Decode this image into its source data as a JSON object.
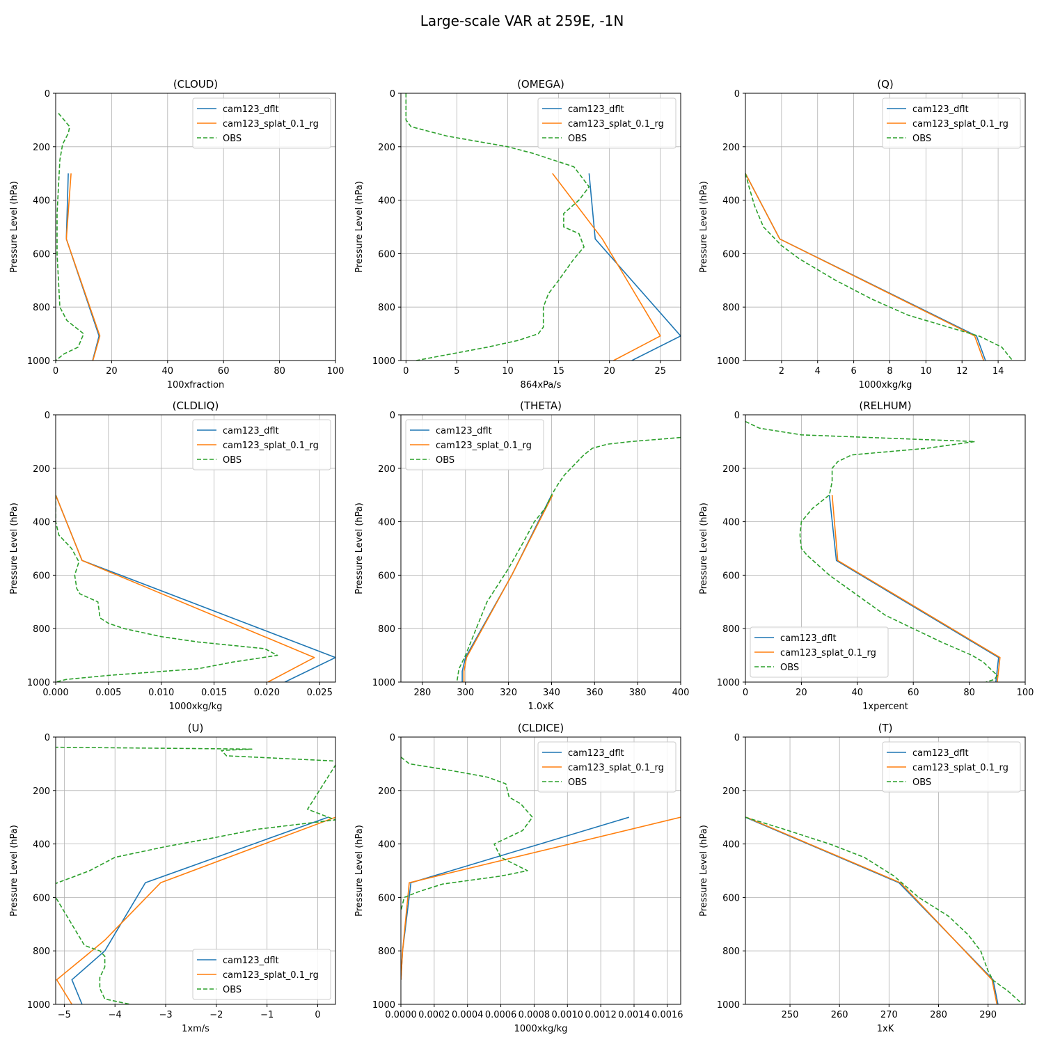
{
  "figure": {
    "title": "Large-scale VAR at 259E, -1N"
  },
  "legend_labels": [
    "cam123_dflt",
    "cam123_splat_0.1_rg",
    "OBS"
  ],
  "colors": {
    "cam123_dflt": "#1f77b4",
    "cam123_splat_0.1_rg": "#ff7f0e",
    "OBS": "#2ca02c",
    "grid": "#b0b0b0"
  },
  "chart_data": [
    {
      "type": "line",
      "title": "(CLOUD)",
      "xlabel": "100xfraction",
      "ylabel": "Pressure Level (hPa)",
      "xlim": [
        0,
        100
      ],
      "ylim": [
        1000,
        0
      ],
      "y_inverted": true,
      "grid": true,
      "legend": "upper right",
      "xticks": [
        0,
        20,
        40,
        60,
        80,
        100
      ],
      "xtick_labels": [
        "0",
        "20",
        "40",
        "60",
        "80",
        "100"
      ],
      "yticks": [
        0,
        200,
        400,
        600,
        800,
        1000
      ],
      "series": [
        {
          "name": "cam123_dflt",
          "style": "solid",
          "x": [
            4.5,
            3.8,
            15.5,
            13.2
          ],
          "y": [
            300,
            545,
            908,
            1000
          ]
        },
        {
          "name": "cam123_splat_0.1_rg",
          "style": "solid",
          "x": [
            5.5,
            3.8,
            15.8,
            13.3
          ],
          "y": [
            300,
            545,
            908,
            1000
          ]
        },
        {
          "name": "OBS",
          "style": "dashed",
          "x": [
            1,
            3,
            5,
            4.5,
            2.5,
            1.5,
            1,
            0.5,
            0.5,
            1,
            1.5,
            4,
            7,
            10,
            8,
            3,
            0
          ],
          "y": [
            75,
            100,
            125,
            150,
            190,
            250,
            350,
            450,
            600,
            700,
            800,
            850,
            875,
            900,
            950,
            975,
            1000
          ]
        }
      ]
    },
    {
      "type": "line",
      "title": "(OMEGA)",
      "xlabel": "864xPa/s",
      "ylabel": "Pressure Level (hPa)",
      "xlim": [
        -0.5,
        27
      ],
      "ylim": [
        1000,
        0
      ],
      "y_inverted": true,
      "grid": true,
      "legend": "upper right",
      "xticks": [
        0,
        5,
        10,
        15,
        20,
        25
      ],
      "xtick_labels": [
        "0",
        "5",
        "10",
        "15",
        "20",
        "25"
      ],
      "yticks": [
        0,
        200,
        400,
        600,
        800,
        1000
      ],
      "series": [
        {
          "name": "cam123_dflt",
          "style": "solid",
          "x": [
            18,
            18.6,
            27,
            22.2
          ],
          "y": [
            300,
            545,
            908,
            1000
          ]
        },
        {
          "name": "cam123_splat_0.1_rg",
          "style": "solid",
          "x": [
            14.4,
            19.3,
            25,
            20.4
          ],
          "y": [
            300,
            545,
            908,
            1000
          ]
        },
        {
          "name": "OBS",
          "style": "dashed",
          "x": [
            0,
            0,
            0,
            0.5,
            4,
            10,
            12.5,
            16.5,
            18,
            17,
            15.5,
            15.5,
            17,
            17.5,
            16.5,
            15,
            14,
            13.5,
            13.5,
            13,
            11,
            8,
            1
          ],
          "y": [
            0,
            50,
            100,
            125,
            160,
            200,
            225,
            275,
            350,
            400,
            450,
            500,
            525,
            575,
            620,
            700,
            750,
            800,
            875,
            900,
            925,
            950,
            1000
          ]
        }
      ]
    },
    {
      "type": "line",
      "title": "(Q)",
      "xlabel": "1000xkg/kg",
      "ylabel": "Pressure Level (hPa)",
      "xlim": [
        0,
        15.5
      ],
      "ylim": [
        1000,
        0
      ],
      "y_inverted": true,
      "grid": true,
      "legend": "upper right",
      "xticks": [
        2,
        4,
        6,
        8,
        10,
        12,
        14
      ],
      "xtick_labels": [
        "2",
        "4",
        "6",
        "8",
        "10",
        "12",
        "14"
      ],
      "yticks": [
        0,
        200,
        400,
        600,
        800,
        1000
      ],
      "series": [
        {
          "name": "cam123_dflt",
          "style": "solid",
          "x": [
            0,
            1.9,
            12.8,
            13.3
          ],
          "y": [
            300,
            545,
            908,
            1000
          ]
        },
        {
          "name": "cam123_splat_0.1_rg",
          "style": "solid",
          "x": [
            0,
            1.9,
            12.7,
            13.2
          ],
          "y": [
            300,
            545,
            908,
            1000
          ]
        },
        {
          "name": "OBS",
          "style": "dashed",
          "x": [
            0,
            0.2,
            0.5,
            1,
            2,
            3,
            5,
            7,
            9,
            11,
            13,
            14.2,
            14.8
          ],
          "y": [
            300,
            350,
            420,
            500,
            570,
            620,
            700,
            770,
            830,
            870,
            910,
            950,
            1000
          ]
        }
      ]
    },
    {
      "type": "line",
      "title": "(CLDLIQ)",
      "xlabel": "1000xkg/kg",
      "ylabel": "Pressure Level (hPa)",
      "xlim": [
        0,
        0.0265
      ],
      "ylim": [
        1000,
        0
      ],
      "y_inverted": true,
      "grid": true,
      "legend": "upper right",
      "xticks": [
        0,
        0.005,
        0.01,
        0.015,
        0.02,
        0.025
      ],
      "xtick_labels": [
        "0.000",
        "0.005",
        "0.010",
        "0.015",
        "0.020",
        "0.025"
      ],
      "yticks": [
        0,
        200,
        400,
        600,
        800,
        1000
      ],
      "series": [
        {
          "name": "cam123_dflt",
          "style": "solid",
          "x": [
            0,
            0.0025,
            0.0265,
            0.0217
          ],
          "y": [
            300,
            545,
            908,
            1000
          ]
        },
        {
          "name": "cam123_splat_0.1_rg",
          "style": "solid",
          "x": [
            0,
            0.0025,
            0.0245,
            0.0201
          ],
          "y": [
            300,
            545,
            908,
            1000
          ]
        },
        {
          "name": "OBS",
          "style": "dashed",
          "x": [
            0,
            0,
            0.0003,
            0.0015,
            0.0022,
            0.0018,
            0.002,
            0.0023,
            0.004,
            0.0042,
            0.005,
            0.0065,
            0.01,
            0.0135,
            0.0198,
            0.021,
            0.0168,
            0.0135,
            0.005,
            0.001,
            0
          ],
          "y": [
            300,
            400,
            450,
            500,
            550,
            600,
            650,
            670,
            700,
            760,
            780,
            800,
            830,
            850,
            875,
            900,
            925,
            950,
            975,
            990,
            1000
          ]
        }
      ]
    },
    {
      "type": "line",
      "title": "(THETA)",
      "xlabel": "1.0xK",
      "ylabel": "Pressure Level (hPa)",
      "xlim": [
        270,
        400
      ],
      "ylim": [
        1000,
        0
      ],
      "y_inverted": true,
      "grid": true,
      "legend": "upper left",
      "xticks": [
        280,
        300,
        320,
        340,
        360,
        380,
        400
      ],
      "xtick_labels": [
        "280",
        "300",
        "320",
        "340",
        "360",
        "380",
        "400"
      ],
      "yticks": [
        0,
        200,
        400,
        600,
        800,
        1000
      ],
      "series": [
        {
          "name": "cam123_dflt",
          "style": "solid",
          "x": [
            340,
            321.5,
            300,
            298.5,
            298.5
          ],
          "y": [
            300,
            600,
            908,
            960,
            1000
          ]
        },
        {
          "name": "cam123_splat_0.1_rg",
          "style": "solid",
          "x": [
            340.5,
            321.5,
            300.5,
            299.3,
            299.3
          ],
          "y": [
            300,
            600,
            908,
            960,
            1000
          ]
        },
        {
          "name": "OBS",
          "style": "dashed",
          "x": [
            400,
            377,
            366,
            359,
            355,
            352,
            349,
            346,
            343,
            340,
            337,
            332,
            327,
            320,
            310,
            305,
            300,
            297,
            296.5,
            296
          ],
          "y": [
            85,
            100,
            110,
            125,
            150,
            175,
            200,
            225,
            260,
            300,
            350,
            400,
            475,
            575,
            700,
            800,
            900,
            950,
            975,
            1000
          ]
        }
      ]
    },
    {
      "type": "line",
      "title": "(RELHUM)",
      "xlabel": "1xpercent",
      "ylabel": "Pressure Level (hPa)",
      "xlim": [
        0,
        100
      ],
      "ylim": [
        1000,
        0
      ],
      "y_inverted": true,
      "grid": true,
      "legend": "lower left",
      "xticks": [
        0,
        20,
        40,
        60,
        80,
        100
      ],
      "xtick_labels": [
        "0",
        "20",
        "40",
        "60",
        "80",
        "100"
      ],
      "yticks": [
        0,
        200,
        400,
        600,
        800,
        1000
      ],
      "series": [
        {
          "name": "cam123_dflt",
          "style": "solid",
          "x": [
            30,
            32.5,
            90.5,
            89.5
          ],
          "y": [
            300,
            545,
            908,
            1000
          ]
        },
        {
          "name": "cam123_splat_0.1_rg",
          "style": "solid",
          "x": [
            31,
            33,
            91,
            90
          ],
          "y": [
            300,
            545,
            908,
            1000
          ]
        },
        {
          "name": "OBS",
          "style": "dashed",
          "x": [
            0,
            5,
            20,
            82,
            65,
            38,
            33,
            31,
            31,
            30,
            24,
            20,
            19.5,
            20,
            22,
            30,
            40,
            50,
            60,
            70,
            81,
            85,
            90,
            89,
            86
          ],
          "y": [
            25,
            50,
            75,
            100,
            125,
            150,
            175,
            200,
            250,
            300,
            350,
            400,
            450,
            500,
            525,
            600,
            675,
            750,
            800,
            850,
            900,
            925,
            975,
            990,
            1000
          ]
        }
      ]
    },
    {
      "type": "line",
      "title": "(U)",
      "xlabel": "1xm/s",
      "ylabel": "Pressure Level (hPa)",
      "xlim": [
        -5.17,
        0.35
      ],
      "ylim": [
        1000,
        0
      ],
      "y_inverted": true,
      "grid": true,
      "legend": "lower right",
      "xticks": [
        -5,
        -4,
        -3,
        -2,
        -1,
        0
      ],
      "xtick_labels": [
        "−5",
        "−4",
        "−3",
        "−2",
        "−1",
        "0"
      ],
      "yticks": [
        0,
        200,
        400,
        600,
        800,
        1000
      ],
      "series": [
        {
          "name": "cam123_dflt",
          "style": "solid",
          "x": [
            0.2,
            -3.4,
            -4.2,
            -4.85,
            -4.65
          ],
          "y": [
            300,
            545,
            800,
            908,
            1000
          ]
        },
        {
          "name": "cam123_splat_0.1_rg",
          "style": "solid",
          "x": [
            0.35,
            -3.1,
            -4.2,
            -5.15,
            -4.85
          ],
          "y": [
            300,
            545,
            760,
            908,
            1000
          ]
        },
        {
          "name": "OBS",
          "style": "dashed",
          "x": [
            -5.2,
            -1.3,
            -1.9,
            -1.8,
            0.4,
            -0.2,
            0.35,
            -1.2,
            -2,
            -3,
            -4,
            -4.5,
            -5.2,
            -5.2,
            -4.6,
            -4.3,
            -4.2,
            -4.2,
            -4.3,
            -4.3,
            -4.2,
            -3.7
          ],
          "y": [
            38,
            45,
            50,
            70,
            90,
            270,
            310,
            345,
            375,
            410,
            450,
            500,
            550,
            590,
            780,
            800,
            820,
            860,
            900,
            940,
            980,
            1000
          ]
        }
      ]
    },
    {
      "type": "line",
      "title": "(CLDICE)",
      "xlabel": "1000xkg/kg",
      "ylabel": "Pressure Level (hPa)",
      "xlim": [
        0,
        0.00168
      ],
      "ylim": [
        1000,
        0
      ],
      "y_inverted": true,
      "grid": true,
      "legend": "upper right",
      "xticks": [
        0,
        0.0002,
        0.0004,
        0.0006,
        0.0008,
        0.001,
        0.0012,
        0.0014,
        0.0016
      ],
      "xtick_labels": [
        "0.0000",
        "0.0002",
        "0.0004",
        "0.0006",
        "0.0008",
        "0.0010",
        "0.0012",
        "0.0014",
        "0.0016"
      ],
      "yticks": [
        0,
        200,
        400,
        600,
        800,
        1000
      ],
      "series": [
        {
          "name": "cam123_dflt",
          "style": "solid",
          "x": [
            0.00137,
            6e-05,
            1e-05,
            0
          ],
          "y": [
            300,
            545,
            800,
            908
          ]
        },
        {
          "name": "cam123_splat_0.1_rg",
          "style": "solid",
          "x": [
            0.00168,
            5e-05,
            1e-05,
            0
          ],
          "y": [
            300,
            545,
            800,
            908
          ]
        },
        {
          "name": "OBS",
          "style": "dashed",
          "x": [
            0,
            5e-05,
            0.0003,
            0.00052,
            0.00063,
            0.00064,
            0.00065,
            0.00072,
            0.00079,
            0.00073,
            0.00056,
            0.0006,
            0.00076,
            0.0006,
            0.00025,
            0.0001,
            2e-05,
            0
          ],
          "y": [
            75,
            100,
            125,
            150,
            175,
            200,
            225,
            250,
            300,
            350,
            400,
            450,
            500,
            520,
            550,
            580,
            600,
            650
          ]
        }
      ]
    },
    {
      "type": "line",
      "title": "(T)",
      "xlabel": "1xK",
      "ylabel": "Pressure Level (hPa)",
      "xlim": [
        241,
        297.5
      ],
      "ylim": [
        1000,
        0
      ],
      "y_inverted": true,
      "grid": true,
      "legend": "upper right",
      "xticks": [
        250,
        260,
        270,
        280,
        290
      ],
      "xtick_labels": [
        "250",
        "260",
        "270",
        "280",
        "290"
      ],
      "yticks": [
        0,
        200,
        400,
        600,
        800,
        1000
      ],
      "series": [
        {
          "name": "cam123_dflt",
          "style": "solid",
          "x": [
            241,
            272,
            291,
            292
          ],
          "y": [
            300,
            545,
            908,
            1000
          ]
        },
        {
          "name": "cam123_splat_0.1_rg",
          "style": "solid",
          "x": [
            241.2,
            272.3,
            290.8,
            291.8
          ],
          "y": [
            300,
            545,
            908,
            1000
          ]
        },
        {
          "name": "OBS",
          "style": "dashed",
          "x": [
            241,
            248,
            258,
            265,
            271,
            276,
            282,
            286,
            288.5,
            290,
            291,
            294,
            297
          ],
          "y": [
            300,
            340,
            400,
            450,
            520,
            600,
            670,
            740,
            800,
            875,
            910,
            950,
            1000
          ]
        }
      ]
    }
  ]
}
